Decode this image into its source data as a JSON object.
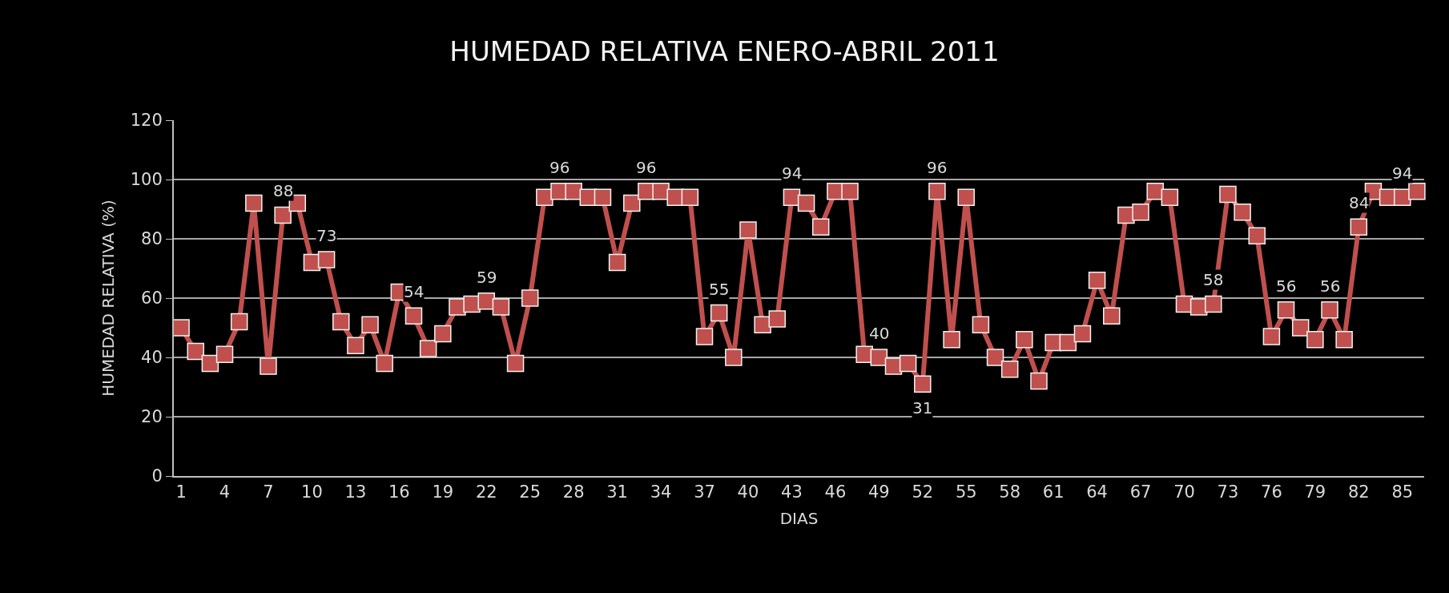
{
  "chart_data": {
    "type": "line",
    "title": "HUMEDAD RELATIVA ENERO-ABRIL 2011",
    "xlabel": "DIAS",
    "ylabel": "HUMEDAD RELATIVA (%)",
    "categories": [
      "1",
      null,
      null,
      "4",
      null,
      null,
      "7",
      null,
      null,
      "10",
      null,
      null,
      "13",
      null,
      null,
      "16",
      null,
      null,
      "19",
      null,
      null,
      "22",
      null,
      null,
      "25",
      null,
      null,
      "28",
      null,
      null,
      "31",
      null,
      null,
      "34",
      null,
      null,
      "37",
      null,
      null,
      "40",
      null,
      null,
      "43",
      null,
      null,
      "46",
      null,
      null,
      "49",
      null,
      null,
      "52",
      null,
      null,
      "55",
      null,
      null,
      "58",
      null,
      null,
      "61",
      null,
      null,
      "64",
      null,
      null,
      "67",
      null,
      null,
      "70",
      null,
      null,
      "73",
      null,
      null,
      "76",
      null,
      null,
      "79",
      null,
      null,
      "82",
      null,
      null,
      "85",
      null
    ],
    "series": [
      {
        "color": "#c0504d",
        "values": [
          50,
          42,
          38,
          41,
          52,
          92,
          37,
          88,
          92,
          72,
          73,
          52,
          44,
          51,
          38,
          62,
          54,
          43,
          48,
          57,
          58,
          59,
          57,
          38,
          60,
          94,
          96,
          96,
          94,
          94,
          72,
          92,
          96,
          96,
          94,
          94,
          47,
          55,
          40,
          83,
          51,
          53,
          94,
          92,
          84,
          96,
          96,
          41,
          40,
          37,
          38,
          31,
          96,
          46,
          94,
          51,
          40,
          36,
          46,
          32,
          45,
          45,
          48,
          66,
          54,
          88,
          89,
          96,
          94,
          58,
          57,
          58,
          95,
          89,
          81,
          47,
          56,
          50,
          46,
          56,
          46,
          84,
          96,
          94,
          94,
          96
        ],
        "value_labels": [
          null,
          null,
          null,
          null,
          null,
          null,
          null,
          "88",
          null,
          null,
          "73",
          null,
          null,
          null,
          null,
          null,
          "54",
          null,
          null,
          null,
          null,
          "59",
          null,
          null,
          null,
          null,
          "96",
          null,
          null,
          null,
          null,
          null,
          "96",
          null,
          null,
          null,
          null,
          "55",
          null,
          null,
          null,
          null,
          "94",
          null,
          null,
          null,
          null,
          null,
          "40",
          null,
          null,
          "31",
          "96",
          null,
          null,
          null,
          null,
          null,
          null,
          null,
          null,
          null,
          null,
          null,
          null,
          null,
          null,
          null,
          null,
          null,
          null,
          "58",
          null,
          null,
          null,
          null,
          "56",
          null,
          null,
          "56",
          null,
          "84",
          null,
          null,
          "94",
          null
        ]
      }
    ],
    "ylim": [
      0,
      120
    ],
    "yticks": [
      0,
      20,
      40,
      60,
      80,
      100,
      120
    ],
    "grid": "y",
    "marker": "square",
    "line_style": "solid"
  }
}
